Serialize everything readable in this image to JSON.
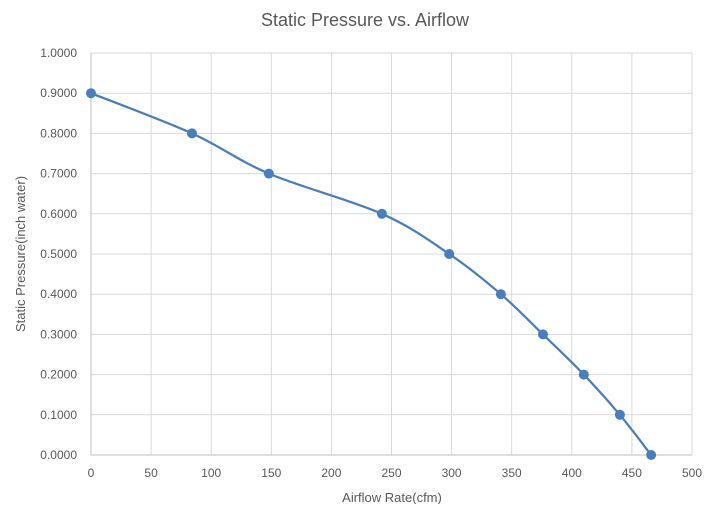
{
  "chart_data": {
    "type": "scatter",
    "title": "Static Pressure vs. Airflow",
    "xlabel": "Airflow Rate(cfm)",
    "ylabel": "Static Pressure(inch water)",
    "xlim": [
      0,
      500
    ],
    "ylim": [
      0,
      1
    ],
    "x_ticks": [
      "0",
      "50",
      "100",
      "150",
      "200",
      "250",
      "300",
      "350",
      "400",
      "450",
      "500"
    ],
    "y_ticks": [
      "0.0000",
      "0.1000",
      "0.2000",
      "0.3000",
      "0.4000",
      "0.5000",
      "0.6000",
      "0.7000",
      "0.8000",
      "0.9000",
      "1.0000"
    ],
    "grid": "vertical and horizontal",
    "legend": "none",
    "series": [
      {
        "smooth": true,
        "color": "#4a7ebb",
        "points": [
          {
            "x": 0,
            "y": 0.9
          },
          {
            "x": 84,
            "y": 0.8
          },
          {
            "x": 148,
            "y": 0.7
          },
          {
            "x": 242,
            "y": 0.6
          },
          {
            "x": 298,
            "y": 0.5
          },
          {
            "x": 341,
            "y": 0.4
          },
          {
            "x": 376,
            "y": 0.3
          },
          {
            "x": 410,
            "y": 0.2
          },
          {
            "x": 440,
            "y": 0.1
          },
          {
            "x": 466,
            "y": 0.0
          }
        ]
      }
    ]
  }
}
